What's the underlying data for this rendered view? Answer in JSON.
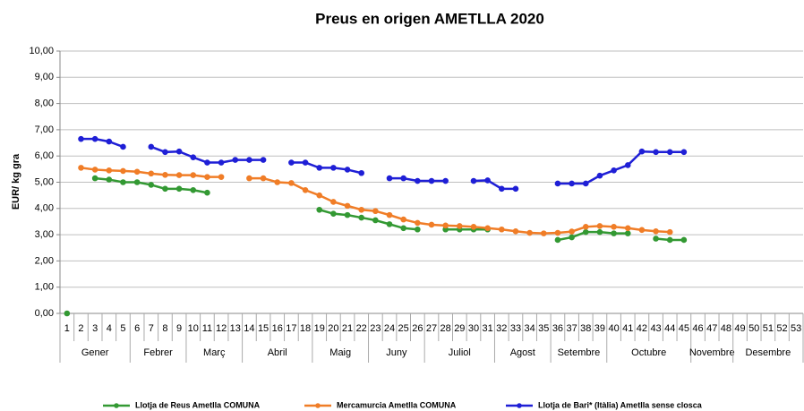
{
  "chart_data": {
    "type": "line",
    "title": "Preus en origen AMETLLA 2020",
    "y_label": "EUR/ kg gra",
    "categories": [
      "1",
      "2",
      "3",
      "4",
      "5",
      "6",
      "7",
      "8",
      "9",
      "10",
      "11",
      "12",
      "13",
      "14",
      "15",
      "16",
      "17",
      "18",
      "19",
      "20",
      "21",
      "22",
      "23",
      "24",
      "25",
      "26",
      "27",
      "28",
      "29",
      "30",
      "31",
      "32",
      "33",
      "34",
      "35",
      "36",
      "37",
      "38",
      "39",
      "40",
      "41",
      "42",
      "43",
      "44",
      "45",
      "46",
      "47",
      "48",
      "49",
      "50",
      "51",
      "52",
      "53"
    ],
    "month_groups": [
      {
        "label": "Gener",
        "first": 1,
        "last": 5
      },
      {
        "label": "Febrer",
        "first": 6,
        "last": 9
      },
      {
        "label": "Març",
        "first": 10,
        "last": 13
      },
      {
        "label": "Abril",
        "first": 14,
        "last": 18
      },
      {
        "label": "Maig",
        "first": 19,
        "last": 22
      },
      {
        "label": "Juny",
        "first": 23,
        "last": 26
      },
      {
        "label": "Juliol",
        "first": 27,
        "last": 31
      },
      {
        "label": "Agost",
        "first": 32,
        "last": 35
      },
      {
        "label": "Setembre",
        "first": 36,
        "last": 39
      },
      {
        "label": "Octubre",
        "first": 40,
        "last": 45
      },
      {
        "label": "Novembre",
        "first": 46,
        "last": 48
      },
      {
        "label": "Desembre",
        "first": 49,
        "last": 53
      }
    ],
    "series": [
      {
        "name": "Llotja de Reus  Ametlla   COMUNA",
        "color": "#339933",
        "values": [
          0.0,
          null,
          5.15,
          5.1,
          5.0,
          5.0,
          4.9,
          4.75,
          4.75,
          4.7,
          4.6,
          null,
          null,
          null,
          null,
          null,
          null,
          null,
          3.95,
          3.8,
          3.75,
          3.65,
          3.55,
          3.4,
          3.25,
          3.2,
          null,
          3.2,
          3.2,
          3.2,
          3.2,
          null,
          null,
          null,
          null,
          2.8,
          2.9,
          3.1,
          3.1,
          3.05,
          3.05,
          null,
          2.85,
          2.8,
          2.8,
          null,
          null,
          null,
          null,
          null,
          null,
          null,
          null
        ]
      },
      {
        "name": "Mercamurcia  Ametlla   COMUNA",
        "color": "#f07d27",
        "values": [
          null,
          5.55,
          5.48,
          5.45,
          5.43,
          5.4,
          5.33,
          5.28,
          5.27,
          5.27,
          5.2,
          5.2,
          null,
          5.15,
          5.15,
          5.0,
          4.97,
          4.7,
          4.5,
          4.25,
          4.1,
          3.95,
          3.9,
          3.75,
          3.58,
          3.45,
          3.38,
          3.35,
          3.33,
          3.3,
          3.25,
          3.2,
          3.13,
          3.07,
          3.05,
          3.07,
          3.12,
          3.3,
          3.33,
          3.3,
          3.25,
          3.18,
          3.13,
          3.1,
          null,
          null,
          null,
          null,
          null,
          null,
          null,
          null,
          null
        ]
      },
      {
        "name": "Llotja de Bari* (Itàlia)  Ametlla  sense closca",
        "color": "#1f1fd6",
        "values": [
          null,
          6.65,
          6.65,
          6.55,
          6.35,
          null,
          6.35,
          6.15,
          6.17,
          5.95,
          5.75,
          5.75,
          5.85,
          5.85,
          5.85,
          null,
          5.75,
          5.75,
          5.55,
          5.55,
          5.48,
          5.35,
          null,
          5.15,
          5.15,
          5.05,
          5.05,
          5.05,
          null,
          5.05,
          5.07,
          4.75,
          4.75,
          null,
          null,
          4.95,
          4.95,
          4.95,
          5.25,
          5.45,
          5.65,
          6.17,
          6.15,
          6.15,
          6.15,
          null,
          null,
          null,
          null,
          null,
          null,
          null,
          null
        ]
      }
    ],
    "ylim": [
      0,
      10
    ],
    "yticks": [
      {
        "value": 0,
        "label": "0,00"
      },
      {
        "value": 1,
        "label": "1,00"
      },
      {
        "value": 2,
        "label": "2,00"
      },
      {
        "value": 3,
        "label": "3,00"
      },
      {
        "value": 4,
        "label": "4,00"
      },
      {
        "value": 5,
        "label": "5,00"
      },
      {
        "value": 6,
        "label": "6,00"
      },
      {
        "value": 7,
        "label": "7,00"
      },
      {
        "value": 8,
        "label": "8,00"
      },
      {
        "value": 9,
        "label": "9,00"
      },
      {
        "value": 10,
        "label": "10,00"
      }
    ],
    "grid": true,
    "legend": "bottom"
  }
}
